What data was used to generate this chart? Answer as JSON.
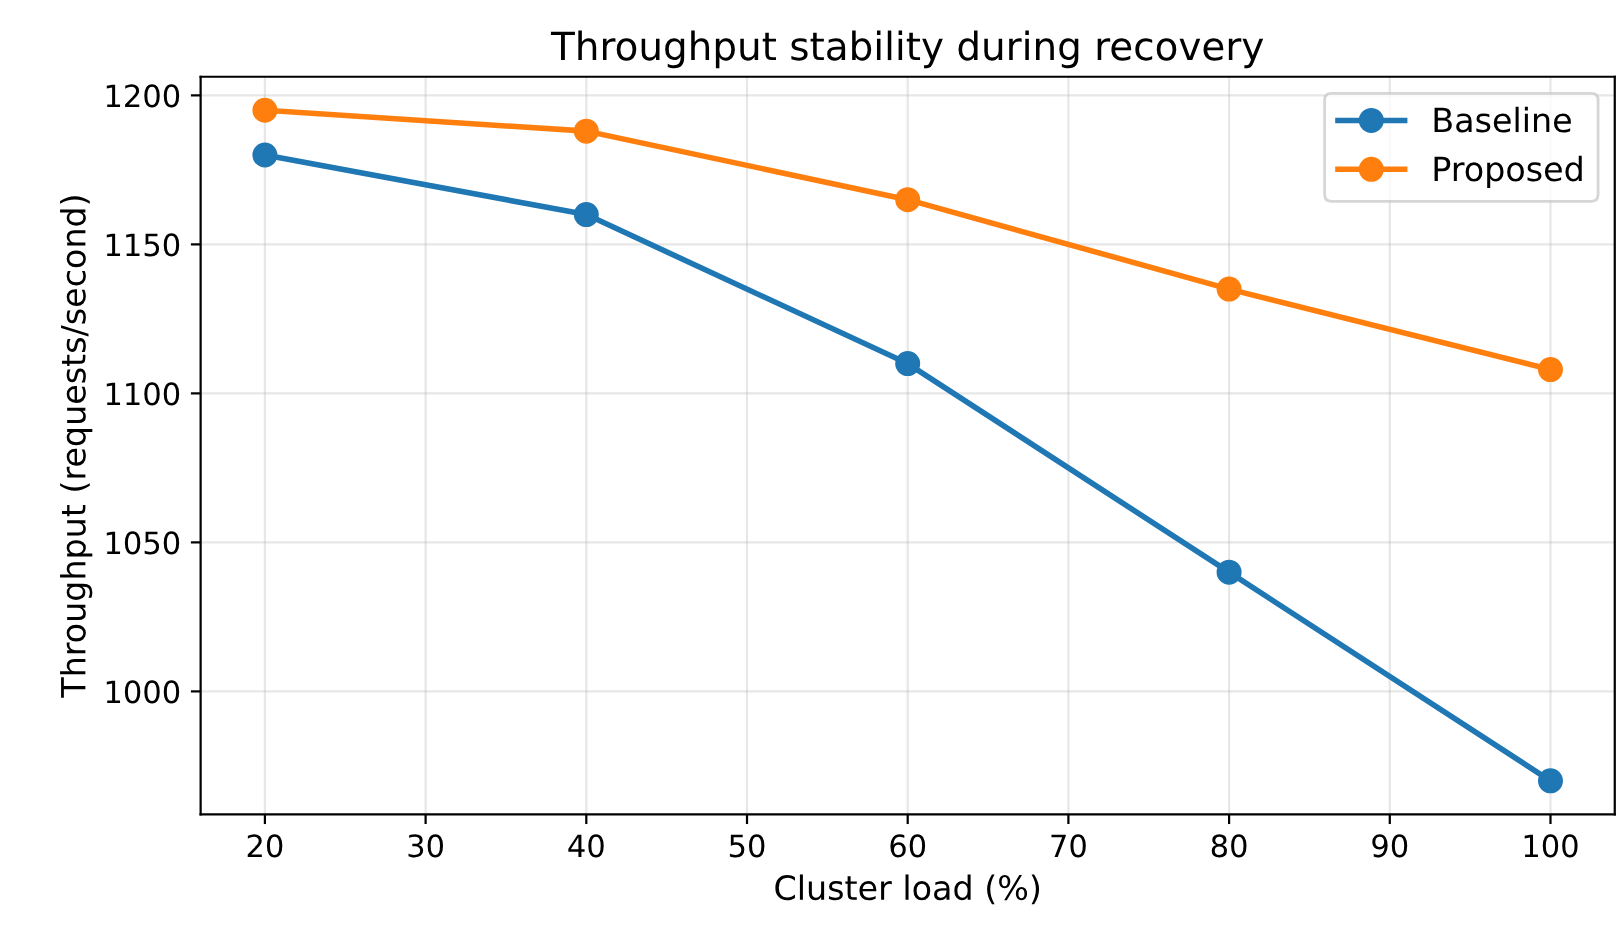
{
  "chart_data": {
    "type": "line",
    "title": "Throughput stability during recovery",
    "xlabel": "Cluster load (%)",
    "ylabel": "Throughput (requests/second)",
    "x": [
      20,
      40,
      60,
      80,
      100
    ],
    "series": [
      {
        "name": "Baseline",
        "color": "#1f77b4",
        "values": [
          1180,
          1160,
          1110,
          1040,
          970
        ]
      },
      {
        "name": "Proposed",
        "color": "#ff7f0e",
        "values": [
          1195,
          1188,
          1165,
          1135,
          1108
        ]
      }
    ],
    "xlim": [
      16,
      104
    ],
    "ylim": [
      958.75,
      1206.25
    ],
    "xticks": [
      20,
      30,
      40,
      50,
      60,
      70,
      80,
      90,
      100
    ],
    "yticks": [
      1000,
      1050,
      1100,
      1150,
      1200
    ],
    "grid": true,
    "legend": "top right",
    "marker": "circle",
    "line_style": "solid"
  }
}
